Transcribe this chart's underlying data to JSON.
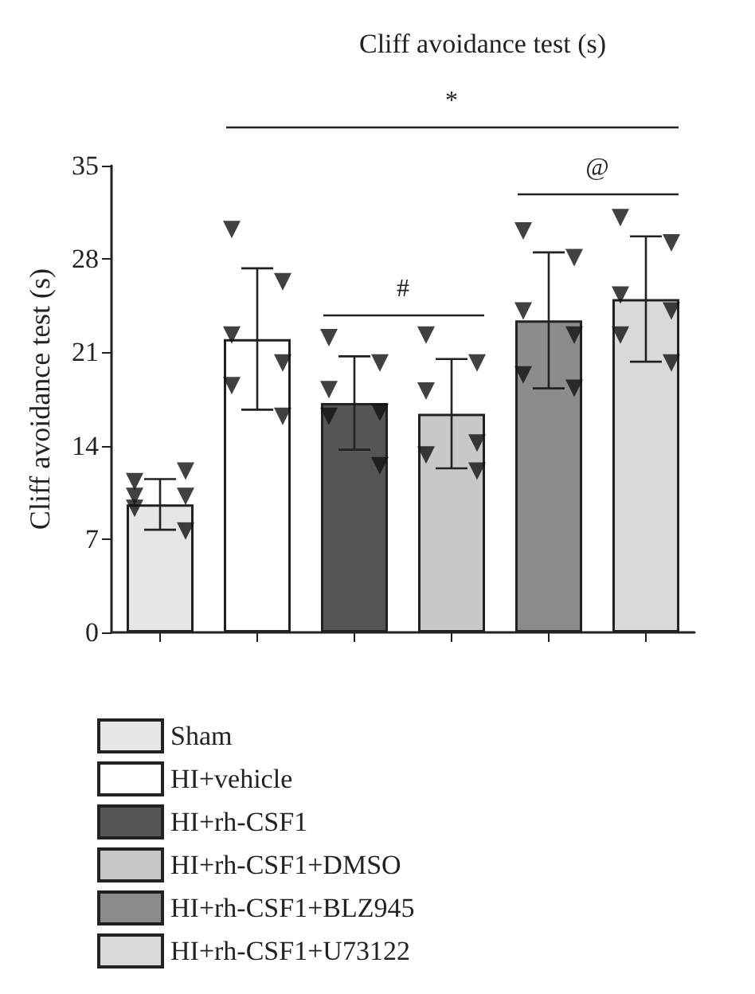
{
  "chart_data": {
    "type": "bar",
    "title": "Cliff avoidance test (s)",
    "ylabel": "Cliff avoidance test (s)",
    "categories": [
      null,
      null,
      null,
      null,
      null,
      null
    ],
    "series": [
      {
        "name": "Sham",
        "color": "#e6e6e6",
        "values": [
          9.6,
          null,
          null,
          null,
          null,
          null
        ],
        "errors": [
          1.9,
          null,
          null,
          null,
          null,
          null
        ]
      },
      {
        "name": "HI+vehicle",
        "color": "#ffffff",
        "values": [
          null,
          22.0,
          null,
          null,
          null,
          null
        ],
        "errors": [
          null,
          5.3,
          null,
          null,
          null,
          null
        ]
      },
      {
        "name": "HI+rh-CSF1",
        "color": "#555555",
        "values": [
          null,
          null,
          17.2,
          null,
          null,
          null
        ],
        "errors": [
          null,
          null,
          3.5,
          null,
          null,
          null
        ]
      },
      {
        "name": "HI+rh-CSF1+DMSO",
        "color": "#c8c8c8",
        "values": [
          null,
          null,
          null,
          16.4,
          null,
          null
        ],
        "errors": [
          null,
          null,
          null,
          4.1,
          null,
          null
        ]
      },
      {
        "name": "HI+rh-CSF1+BLZ945",
        "color": "#8c8c8c",
        "values": [
          null,
          null,
          null,
          null,
          23.4,
          null
        ],
        "errors": [
          null,
          null,
          null,
          null,
          5.1,
          null
        ]
      },
      {
        "name": "HI+rh-CSF1+U73122",
        "color": "#d9d9d9",
        "values": [
          null,
          null,
          null,
          null,
          null,
          25.0
        ],
        "errors": [
          null,
          null,
          null,
          null,
          null,
          4.7
        ]
      },
      {
        "type": "scatter",
        "color": "#111111",
        "values": [
          11.3,
          30.2,
          22.1,
          22.3,
          30.1,
          31.1
        ]
      },
      {
        "type": "scatter",
        "color": "#111111",
        "values": [
          12.1,
          26.3,
          20.2,
          20.2,
          28.1,
          29.2
        ]
      },
      {
        "type": "scatter",
        "color": "#111111",
        "values": [
          10.2,
          22.3,
          18.2,
          18.1,
          24.1,
          25.3
        ]
      },
      {
        "type": "scatter",
        "color": "#111111",
        "values": [
          10.2,
          20.2,
          16.5,
          14.2,
          22.3,
          24.1
        ]
      },
      {
        "type": "scatter",
        "color": "#111111",
        "values": [
          9.3,
          18.5,
          16.2,
          13.3,
          19.3,
          22.3
        ]
      },
      {
        "type": "scatter",
        "color": "#111111",
        "values": [
          7.6,
          16.2,
          12.5,
          12.1,
          18.3,
          20.2
        ]
      }
    ],
    "marker": "triangle",
    "annotations": [
      "*",
      "#",
      "@"
    ],
    "ylim": [
      0,
      35
    ],
    "yticks": [
      0,
      7,
      14,
      21,
      28,
      35
    ],
    "grid": false,
    "legend": "bottom",
    "tick_labels": "y"
  }
}
